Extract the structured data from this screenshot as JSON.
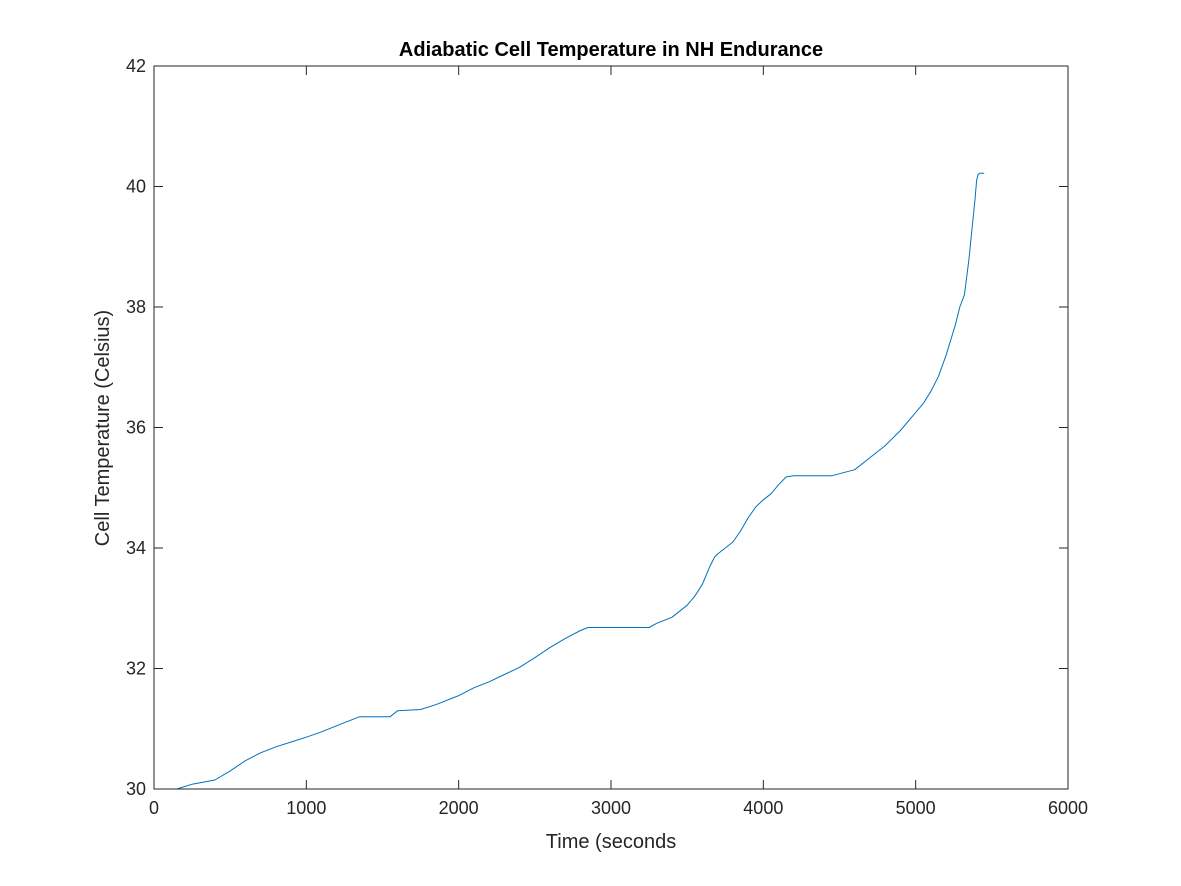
{
  "chart_data": {
    "type": "line",
    "title": "Adiabatic Cell Temperature in NH Endurance",
    "xlabel": "Time (seconds",
    "ylabel": "Cell Temperature (Celsius)",
    "xlim": [
      0,
      6000
    ],
    "ylim": [
      30,
      42
    ],
    "xticks": [
      0,
      1000,
      2000,
      3000,
      4000,
      5000,
      6000
    ],
    "yticks": [
      30,
      32,
      34,
      36,
      38,
      40,
      42
    ],
    "xtick_labels": [
      "0",
      "1000",
      "2000",
      "3000",
      "4000",
      "5000",
      "6000"
    ],
    "ytick_labels": [
      "30",
      "32",
      "34",
      "36",
      "38",
      "40",
      "42"
    ],
    "grid": false,
    "series": [
      {
        "color": "#0072bd",
        "x": [
          0,
          150,
          250,
          400,
          500,
          600,
          700,
          800,
          900,
          1000,
          1100,
          1200,
          1350,
          1550,
          1600,
          1750,
          1850,
          2000,
          2100,
          2200,
          2300,
          2400,
          2500,
          2600,
          2700,
          2800,
          2850,
          3250,
          3300,
          3400,
          3450,
          3500,
          3550,
          3600,
          3650,
          3680,
          3700,
          3750,
          3800,
          3850,
          3900,
          3950,
          4000,
          4050,
          4100,
          4150,
          4200,
          4250,
          4450,
          4600,
          4700,
          4800,
          4900,
          5000,
          5050,
          5100,
          5150,
          5200,
          5230,
          5260,
          5290,
          5320,
          5350,
          5370,
          5390,
          5400,
          5410,
          5420,
          5450
        ],
        "y": [
          30.0,
          30.0,
          30.08,
          30.15,
          30.3,
          30.47,
          30.6,
          30.7,
          30.78,
          30.86,
          30.95,
          31.05,
          31.2,
          31.2,
          31.3,
          31.32,
          31.4,
          31.55,
          31.68,
          31.78,
          31.9,
          32.02,
          32.18,
          32.35,
          32.5,
          32.63,
          32.68,
          32.68,
          32.75,
          32.85,
          32.95,
          33.05,
          33.2,
          33.4,
          33.7,
          33.85,
          33.9,
          34.0,
          34.1,
          34.28,
          34.5,
          34.68,
          34.8,
          34.9,
          35.05,
          35.18,
          35.2,
          35.2,
          35.2,
          35.3,
          35.5,
          35.7,
          35.95,
          36.25,
          36.4,
          36.6,
          36.85,
          37.2,
          37.45,
          37.7,
          38.0,
          38.2,
          38.8,
          39.3,
          39.8,
          40.1,
          40.2,
          40.22,
          40.22
        ]
      }
    ]
  }
}
